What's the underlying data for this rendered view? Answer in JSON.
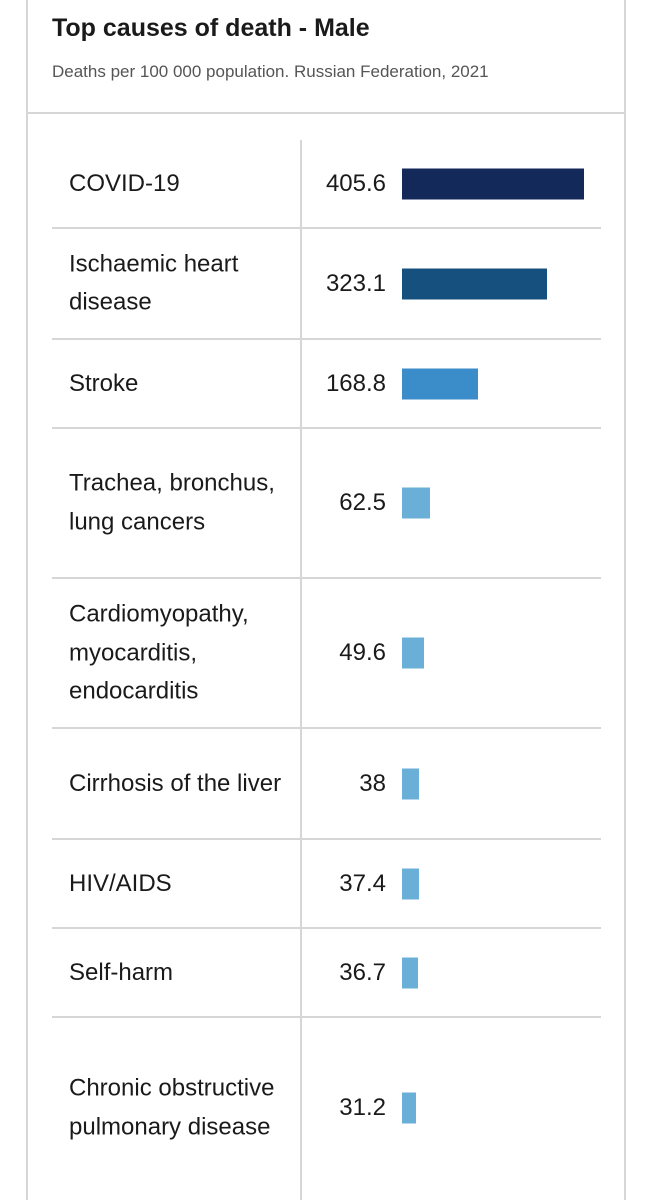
{
  "title": "Top causes of death - Male",
  "subtitle": "Deaths per 100 000 population. Russian Federation, 2021",
  "colors": {
    "dark_navy": "#13295a",
    "dark_blue": "#16507f",
    "mid_blue": "#3a8dc8",
    "light_blue": "#6aafd8"
  },
  "chart_data": {
    "type": "bar",
    "orientation": "horizontal",
    "title": "Top causes of death - Male",
    "subtitle": "Deaths per 100 000 population. Russian Federation, 2021",
    "categories": [
      "COVID-19",
      "Ischaemic heart disease",
      "Stroke",
      "Trachea, bronchus, lung cancers",
      "Cardiomyopathy, myocarditis, endocarditis",
      "Cirrhosis of the liver",
      "HIV/AIDS",
      "Self-harm",
      "Chronic obstructive pulmonary disease"
    ],
    "values": [
      405.6,
      323.1,
      168.8,
      62.5,
      49.6,
      38,
      37.4,
      36.7,
      31.2
    ],
    "value_labels": [
      "405.6",
      "323.1",
      "168.8",
      "62.5",
      "49.6",
      "38",
      "37.4",
      "36.7",
      "31.2"
    ],
    "bar_colors": [
      "#13295a",
      "#16507f",
      "#3a8dc8",
      "#6aafd8",
      "#6aafd8",
      "#6aafd8",
      "#6aafd8",
      "#6aafd8",
      "#6aafd8"
    ],
    "xlim": [
      0,
      405.6
    ],
    "grid": false
  }
}
